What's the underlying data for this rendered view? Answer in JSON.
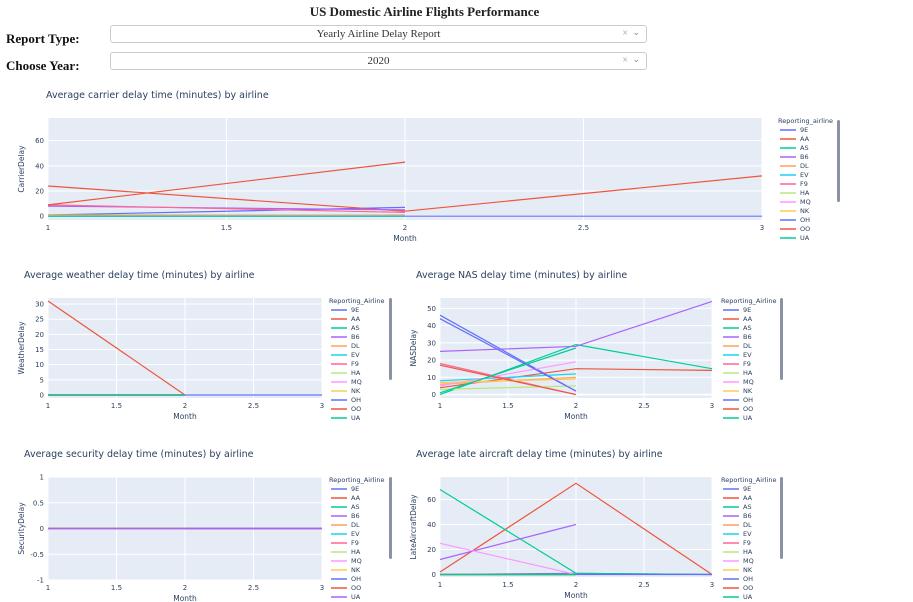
{
  "page": {
    "title": "US Domestic Airline Flights Performance"
  },
  "controls": {
    "report_type": {
      "label": "Report Type:",
      "value": "Yearly Airline Delay Report",
      "clear_icon": "clear-icon",
      "arrow_icon": "chevron-down-icon"
    },
    "year": {
      "label": "Choose Year:",
      "value": "2020",
      "clear_icon": "clear-icon",
      "arrow_icon": "chevron-down-icon"
    }
  },
  "chart_data": [
    {
      "id": "carrier",
      "type": "line",
      "title": "Average carrier delay time (minutes) by airline",
      "xlabel": "Month",
      "ylabel": "CarrierDelay",
      "xlim": [
        1,
        3
      ],
      "ylim": [
        -3,
        78
      ],
      "xticks": [
        1,
        1.5,
        2,
        2.5,
        3
      ],
      "xtick_labels": [
        "1",
        "1.5",
        "2",
        "2.5",
        "3"
      ],
      "yticks": [
        0,
        20,
        40,
        60
      ],
      "legend_title": "Reporting_airline",
      "series": [
        {
          "name": "9E",
          "color": "#636efa",
          "x": [
            1,
            2
          ],
          "y": [
            1,
            7
          ]
        },
        {
          "name": "AA",
          "color": "#ef553b",
          "x": [
            1,
            2,
            3
          ],
          "y": [
            24,
            4,
            32
          ]
        },
        {
          "name": "AS",
          "color": "#00cc96",
          "x": [
            1,
            2
          ],
          "y": [
            0.5,
            1
          ]
        },
        {
          "name": "B6",
          "color": "#ab63fa",
          "x": [
            1,
            2
          ],
          "y": [
            8,
            5
          ]
        },
        {
          "name": "DL",
          "color": "#ffa15a",
          "x": [
            1,
            2
          ],
          "y": [
            1,
            1
          ]
        },
        {
          "name": "EV",
          "color": "#19d3f3",
          "x": [
            1,
            2
          ],
          "y": [
            0.5,
            0.5
          ]
        },
        {
          "name": "F9",
          "color": "#ff6692",
          "x": [
            1,
            2
          ],
          "y": [
            9,
            3
          ]
        },
        {
          "name": "HA",
          "color": "#b6e880",
          "x": [
            1,
            2
          ],
          "y": [
            0.3,
            0.3
          ]
        },
        {
          "name": "MQ",
          "color": "#ff97ff",
          "x": [
            1,
            2
          ],
          "y": [
            0.5,
            1
          ]
        },
        {
          "name": "NK",
          "color": "#fecb52",
          "x": [
            1,
            2
          ],
          "y": [
            0.5,
            0.5
          ]
        },
        {
          "name": "OH",
          "color": "#636efa",
          "x": [
            1,
            2,
            3
          ],
          "y": [
            0,
            0,
            0
          ]
        },
        {
          "name": "OO",
          "color": "#ef553b",
          "x": [
            1,
            2
          ],
          "y": [
            9,
            43
          ]
        },
        {
          "name": "UA",
          "color": "#00cc96",
          "x": [
            1,
            2
          ],
          "y": [
            0,
            0
          ]
        }
      ]
    },
    {
      "id": "weather",
      "type": "line",
      "title": "Average weather delay time (minutes) by airline",
      "xlabel": "Month",
      "ylabel": "WeatherDelay",
      "xlim": [
        1,
        3
      ],
      "ylim": [
        -1,
        32
      ],
      "xticks": [
        1,
        1.5,
        2,
        2.5,
        3
      ],
      "xtick_labels": [
        "1",
        "1.5",
        "2",
        "2.5",
        "3"
      ],
      "yticks": [
        0,
        5,
        10,
        15,
        20,
        25,
        30
      ],
      "legend_title": "Reporting_Airline",
      "series": [
        {
          "name": "9E",
          "color": "#636efa",
          "x": [
            1,
            2
          ],
          "y": [
            0,
            0
          ]
        },
        {
          "name": "AA",
          "color": "#ef553b",
          "x": [
            1,
            2
          ],
          "y": [
            31,
            0
          ]
        },
        {
          "name": "AS",
          "color": "#00cc96",
          "x": [
            1,
            2
          ],
          "y": [
            0,
            0
          ]
        },
        {
          "name": "B6",
          "color": "#ab63fa",
          "x": [
            1,
            2
          ],
          "y": [
            0,
            0
          ]
        },
        {
          "name": "DL",
          "color": "#ffa15a",
          "x": [
            1,
            2
          ],
          "y": [
            0,
            0
          ]
        },
        {
          "name": "EV",
          "color": "#19d3f3",
          "x": [
            1,
            2
          ],
          "y": [
            0,
            0
          ]
        },
        {
          "name": "F9",
          "color": "#ff6692",
          "x": [
            1,
            2
          ],
          "y": [
            0,
            0
          ]
        },
        {
          "name": "HA",
          "color": "#b6e880",
          "x": [
            1,
            2
          ],
          "y": [
            0,
            0
          ]
        },
        {
          "name": "MQ",
          "color": "#ff97ff",
          "x": [
            1,
            2
          ],
          "y": [
            0,
            0
          ]
        },
        {
          "name": "NK",
          "color": "#fecb52",
          "x": [
            1,
            2
          ],
          "y": [
            0,
            0
          ]
        },
        {
          "name": "OH",
          "color": "#636efa",
          "x": [
            1,
            2,
            3
          ],
          "y": [
            0,
            0,
            0
          ]
        },
        {
          "name": "OO",
          "color": "#ef553b",
          "x": [
            1,
            2
          ],
          "y": [
            0,
            0
          ]
        },
        {
          "name": "UA",
          "color": "#00cc96",
          "x": [
            1,
            2
          ],
          "y": [
            0,
            0
          ]
        }
      ]
    },
    {
      "id": "nas",
      "type": "line",
      "title": "Average NAS delay time (minutes) by airline",
      "xlabel": "Month",
      "ylabel": "NASDelay",
      "xlim": [
        1,
        3
      ],
      "ylim": [
        -2,
        56
      ],
      "xticks": [
        1,
        1.5,
        2,
        2.5,
        3
      ],
      "xtick_labels": [
        "1",
        "1.5",
        "2",
        "2.5",
        "3"
      ],
      "yticks": [
        0,
        10,
        20,
        30,
        40,
        50
      ],
      "legend_title": "Reporting_Airline",
      "series": [
        {
          "name": "9E",
          "color": "#636efa",
          "x": [
            1,
            2
          ],
          "y": [
            46,
            2
          ]
        },
        {
          "name": "AA",
          "color": "#ef553b",
          "x": [
            1,
            2,
            3
          ],
          "y": [
            4,
            15,
            14
          ]
        },
        {
          "name": "AS",
          "color": "#00cc96",
          "x": [
            1,
            2,
            3
          ],
          "y": [
            0,
            29,
            15
          ]
        },
        {
          "name": "B6",
          "color": "#ab63fa",
          "x": [
            1,
            2,
            3
          ],
          "y": [
            25,
            28,
            54
          ]
        },
        {
          "name": "DL",
          "color": "#ffa15a",
          "x": [
            1,
            2
          ],
          "y": [
            6,
            10
          ]
        },
        {
          "name": "EV",
          "color": "#19d3f3",
          "x": [
            1,
            2
          ],
          "y": [
            8,
            12
          ]
        },
        {
          "name": "F9",
          "color": "#ff6692",
          "x": [
            1,
            2
          ],
          "y": [
            18,
            0
          ]
        },
        {
          "name": "HA",
          "color": "#b6e880",
          "x": [
            1,
            2
          ],
          "y": [
            3,
            5
          ]
        },
        {
          "name": "MQ",
          "color": "#ff97ff",
          "x": [
            1,
            2
          ],
          "y": [
            5,
            19
          ]
        },
        {
          "name": "NK",
          "color": "#fecb52",
          "x": [
            1,
            2
          ],
          "y": [
            7,
            9
          ]
        },
        {
          "name": "OH",
          "color": "#636efa",
          "x": [
            1,
            2
          ],
          "y": [
            44,
            2
          ]
        },
        {
          "name": "OO",
          "color": "#ef553b",
          "x": [
            1,
            2
          ],
          "y": [
            17,
            0
          ]
        },
        {
          "name": "UA",
          "color": "#00cc96",
          "x": [
            1,
            2
          ],
          "y": [
            1,
            27
          ]
        }
      ]
    },
    {
      "id": "security",
      "type": "line",
      "title": "Average security delay time (minutes) by airline",
      "xlabel": "Month",
      "ylabel": "SecurityDelay",
      "xlim": [
        1,
        3
      ],
      "ylim": [
        -1,
        1
      ],
      "xticks": [
        1,
        1.5,
        2,
        2.5,
        3
      ],
      "xtick_labels": [
        "1",
        "1.5",
        "2",
        "2.5",
        "3"
      ],
      "yticks": [
        -1,
        -0.5,
        0,
        0.5,
        1
      ],
      "ytick_labels": [
        "-1",
        "-0.5",
        "0",
        "0.5",
        "1"
      ],
      "legend_title": "Reporting_Airline",
      "series": [
        {
          "name": "9E",
          "color": "#636efa",
          "x": [
            1,
            3
          ],
          "y": [
            0,
            0
          ]
        },
        {
          "name": "AA",
          "color": "#ef553b",
          "x": [
            1,
            3
          ],
          "y": [
            0,
            0
          ]
        },
        {
          "name": "AS",
          "color": "#00cc96",
          "x": [
            1,
            3
          ],
          "y": [
            0,
            0
          ]
        },
        {
          "name": "B6",
          "color": "#ab63fa",
          "x": [
            1,
            3
          ],
          "y": [
            0,
            0
          ]
        },
        {
          "name": "DL",
          "color": "#ffa15a",
          "x": [
            1,
            2
          ],
          "y": [
            0,
            0
          ]
        },
        {
          "name": "EV",
          "color": "#19d3f3",
          "x": [
            1,
            2
          ],
          "y": [
            0,
            0
          ]
        },
        {
          "name": "F9",
          "color": "#ff6692",
          "x": [
            1,
            2
          ],
          "y": [
            0,
            0
          ]
        },
        {
          "name": "HA",
          "color": "#b6e880",
          "x": [
            1,
            2
          ],
          "y": [
            0,
            0
          ]
        },
        {
          "name": "MQ",
          "color": "#ff97ff",
          "x": [
            1,
            2
          ],
          "y": [
            0,
            0
          ]
        },
        {
          "name": "NK",
          "color": "#fecb52",
          "x": [
            1,
            2
          ],
          "y": [
            0,
            0
          ]
        },
        {
          "name": "OH",
          "color": "#636efa",
          "x": [
            1,
            3
          ],
          "y": [
            0,
            0
          ]
        },
        {
          "name": "OO",
          "color": "#ef553b",
          "x": [
            1,
            3
          ],
          "y": [
            0,
            0
          ]
        },
        {
          "name": "UA",
          "color": "#ab63fa",
          "x": [
            1,
            3
          ],
          "y": [
            0,
            0
          ]
        }
      ]
    },
    {
      "id": "lateaircraft",
      "type": "line",
      "title": "Average late aircraft delay time (minutes) by airline",
      "xlabel": "Month",
      "ylabel": "LateAircraftDelay",
      "xlim": [
        1,
        3
      ],
      "ylim": [
        -2,
        78
      ],
      "xticks": [
        1,
        1.5,
        2,
        2.5,
        3
      ],
      "xtick_labels": [
        "1",
        "1.5",
        "2",
        "2.5",
        "3"
      ],
      "yticks": [
        0,
        20,
        40,
        60
      ],
      "legend_title": "Reporting_Airline",
      "series": [
        {
          "name": "9E",
          "color": "#636efa",
          "x": [
            1,
            2,
            3
          ],
          "y": [
            0,
            1,
            0
          ]
        },
        {
          "name": "AA",
          "color": "#ef553b",
          "x": [
            1,
            2,
            3
          ],
          "y": [
            2,
            73,
            0
          ]
        },
        {
          "name": "AS",
          "color": "#00cc96",
          "x": [
            1,
            2,
            3
          ],
          "y": [
            68,
            1,
            0
          ]
        },
        {
          "name": "B6",
          "color": "#ab63fa",
          "x": [
            1,
            2
          ],
          "y": [
            12,
            40
          ]
        },
        {
          "name": "DL",
          "color": "#ffa15a",
          "x": [
            1,
            2
          ],
          "y": [
            0,
            0
          ]
        },
        {
          "name": "EV",
          "color": "#19d3f3",
          "x": [
            1,
            2
          ],
          "y": [
            0,
            0
          ]
        },
        {
          "name": "F9",
          "color": "#ff6692",
          "x": [
            1,
            2
          ],
          "y": [
            0,
            0
          ]
        },
        {
          "name": "HA",
          "color": "#b6e880",
          "x": [
            1,
            2
          ],
          "y": [
            0,
            0
          ]
        },
        {
          "name": "MQ",
          "color": "#ff97ff",
          "x": [
            1,
            2
          ],
          "y": [
            25,
            0
          ]
        },
        {
          "name": "NK",
          "color": "#fecb52",
          "x": [
            1,
            2
          ],
          "y": [
            0,
            0
          ]
        },
        {
          "name": "OH",
          "color": "#636efa",
          "x": [
            1,
            2,
            3
          ],
          "y": [
            0,
            0,
            0
          ]
        },
        {
          "name": "OO",
          "color": "#ef553b",
          "x": [
            1,
            2
          ],
          "y": [
            0,
            0
          ]
        },
        {
          "name": "UA",
          "color": "#00cc96",
          "x": [
            1,
            2
          ],
          "y": [
            0,
            0
          ]
        }
      ]
    }
  ]
}
